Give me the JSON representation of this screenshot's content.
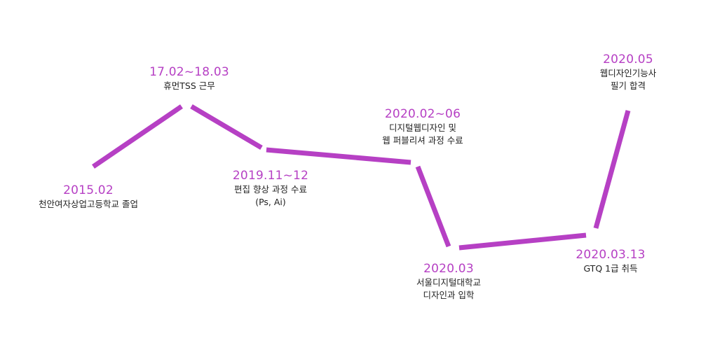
{
  "accent_color": "#b640c4",
  "milestones": [
    {
      "date": "2015.02",
      "desc": [
        "천안여자상업고등학교 졸업"
      ]
    },
    {
      "date": "17.02~18.03",
      "desc": [
        "휴먼TSS 근무"
      ]
    },
    {
      "date": "2019.11~12",
      "desc": [
        "편집 향상 과정 수료",
        "(Ps, Ai)"
      ]
    },
    {
      "date": "2020.02~06",
      "desc": [
        "디지털웹디자인 및",
        "웹 퍼블리셔 과정 수료"
      ]
    },
    {
      "date": "2020.03",
      "desc": [
        "서울디지털대학교",
        "디자인과 입학"
      ]
    },
    {
      "date": "2020.03.13",
      "desc": [
        "GTQ 1급 취득"
      ]
    },
    {
      "date": "2020.05",
      "desc": [
        "웹디자인기능사",
        "필기 합격"
      ]
    }
  ]
}
